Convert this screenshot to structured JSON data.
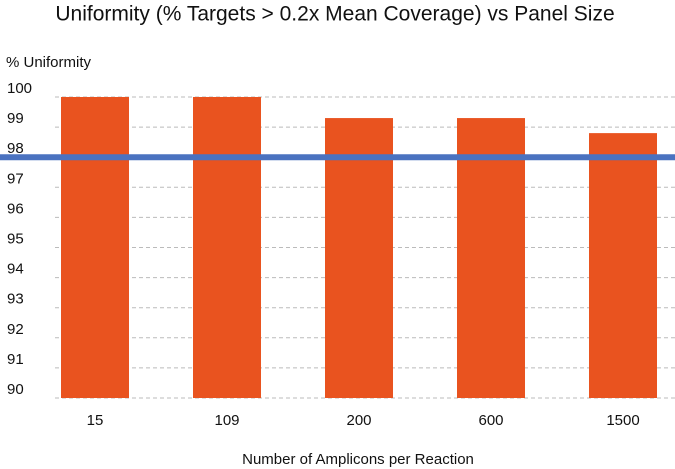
{
  "chart_data": {
    "type": "bar",
    "title": "Uniformity (% Targets > 0.2x Mean Coverage) vs Panel Size",
    "y_label": "% Uniformity",
    "x_label": "Number of Amplicons per Reaction",
    "categories": [
      "15",
      "109",
      "200",
      "600",
      "1500"
    ],
    "values": [
      100,
      100,
      99.3,
      99.3,
      98.8
    ],
    "color": "#e9531f",
    "ylim": [
      90,
      100
    ],
    "yticks": [
      90,
      91,
      92,
      93,
      94,
      95,
      96,
      97,
      98,
      99,
      100
    ],
    "grid": true,
    "reference_line": {
      "value": 98,
      "color": "#4a72c0"
    }
  }
}
